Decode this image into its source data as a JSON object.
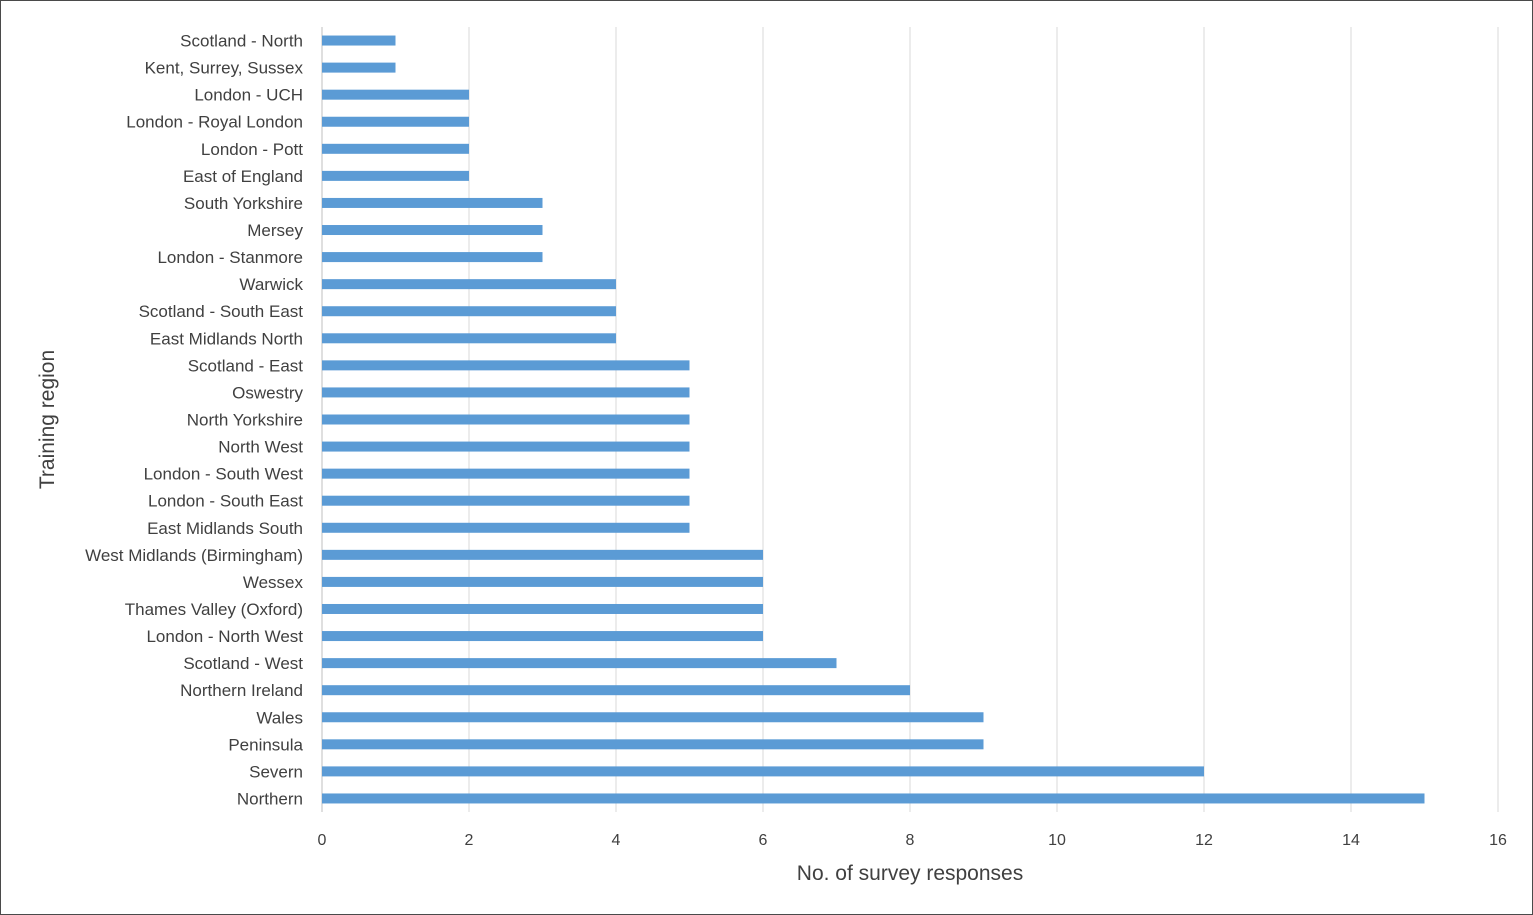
{
  "chart_data": {
    "type": "bar",
    "orientation": "horizontal",
    "xlabel": "No. of survey responses",
    "ylabel": "Training region",
    "xlim": [
      0,
      16
    ],
    "xticks": [
      0,
      2,
      4,
      6,
      8,
      10,
      12,
      14,
      16
    ],
    "grid": "vertical",
    "bar_color": "#5b9bd5",
    "categories": [
      "Scotland - North",
      "Kent, Surrey, Sussex",
      "London - UCH",
      "London - Royal London",
      "London - Pott",
      "East of England",
      "South Yorkshire",
      "Mersey",
      "London - Stanmore",
      "Warwick",
      "Scotland - South East",
      "East Midlands North",
      "Scotland - East",
      "Oswestry",
      "North Yorkshire",
      "North West",
      "London - South West",
      "London - South East",
      "East Midlands South",
      "West Midlands (Birmingham)",
      "Wessex",
      "Thames Valley (Oxford)",
      "London - North West",
      "Scotland - West",
      "Northern Ireland",
      "Wales",
      "Peninsula",
      "Severn",
      "Northern"
    ],
    "values": [
      1,
      1,
      2,
      2,
      2,
      2,
      3,
      3,
      3,
      4,
      4,
      4,
      5,
      5,
      5,
      5,
      5,
      5,
      5,
      6,
      6,
      6,
      6,
      7,
      8,
      9,
      9,
      12,
      15
    ]
  }
}
